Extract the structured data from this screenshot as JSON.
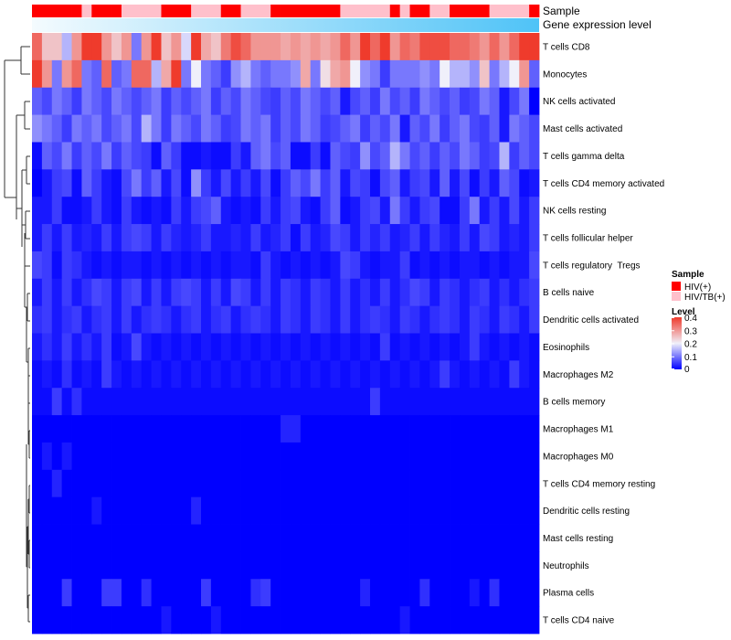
{
  "chart_data": {
    "type": "heatmap",
    "title": "",
    "annotation_rows": [
      "Sample",
      "Gene expression level"
    ],
    "row_labels": [
      "T cells CD8",
      "Monocytes",
      "NK cells activated",
      "Mast cells activated",
      "T cells gamma delta",
      "T cells CD4 memory activated",
      "NK cells resting",
      "T cells follicular helper",
      "T cells regulatory  Tregs",
      "B cells naive",
      "Dendritic cells activated",
      "Eosinophils",
      "Macrophages M2",
      "B cells memory",
      "Macrophages M1",
      "Macrophages M0",
      "T cells CD4 memory resting",
      "Dendritic cells resting",
      "Mast cells resting",
      "Neutrophils",
      "Plasma cells",
      "T cells CD4 naive"
    ],
    "sample_groups": [
      1,
      1,
      1,
      1,
      1,
      2,
      1,
      1,
      1,
      2,
      2,
      2,
      2,
      1,
      1,
      1,
      2,
      2,
      2,
      1,
      1,
      2,
      2,
      2,
      1,
      1,
      1,
      1,
      1,
      1,
      1,
      2,
      2,
      2,
      2,
      2,
      1,
      2,
      1,
      1,
      2,
      2,
      1,
      1,
      1,
      1,
      2,
      2,
      2,
      2,
      1
    ],
    "values": [
      [
        0.35,
        0.25,
        0.25,
        0.15,
        0.3,
        0.4,
        0.4,
        0.3,
        0.25,
        0.3,
        0.1,
        0.3,
        0.4,
        0.25,
        0.3,
        0.18,
        0.4,
        0.28,
        0.25,
        0.33,
        0.38,
        0.35,
        0.3,
        0.3,
        0.3,
        0.28,
        0.3,
        0.28,
        0.3,
        0.28,
        0.3,
        0.35,
        0.3,
        0.4,
        0.35,
        0.4,
        0.3,
        0.35,
        0.33,
        0.38,
        0.38,
        0.38,
        0.35,
        0.35,
        0.33,
        0.3,
        0.35,
        0.3,
        0.35,
        0.4,
        0.4
      ],
      [
        0.4,
        0.3,
        0.1,
        0.3,
        0.35,
        0.1,
        0.08,
        0.35,
        0.08,
        0.1,
        0.35,
        0.35,
        0.15,
        0.28,
        0.4,
        0.1,
        0.2,
        0.1,
        0.08,
        0.05,
        0.12,
        0.15,
        0.1,
        0.08,
        0.1,
        0.1,
        0.12,
        0.28,
        0.1,
        0.22,
        0.28,
        0.3,
        0.2,
        0.12,
        0.1,
        0.05,
        0.1,
        0.1,
        0.1,
        0.12,
        0.1,
        0.2,
        0.15,
        0.15,
        0.12,
        0.25,
        0.1,
        0.15,
        0.2,
        0.3,
        0.08
      ],
      [
        0.08,
        0.06,
        0.1,
        0.08,
        0.05,
        0.1,
        0.08,
        0.06,
        0.1,
        0.08,
        0.06,
        0.08,
        0.1,
        0.05,
        0.08,
        0.06,
        0.08,
        0.1,
        0.05,
        0.08,
        0.06,
        0.1,
        0.08,
        0.06,
        0.05,
        0.08,
        0.06,
        0.1,
        0.08,
        0.06,
        0.08,
        0.02,
        0.06,
        0.08,
        0.05,
        0.1,
        0.06,
        0.08,
        0.05,
        0.1,
        0.08,
        0.06,
        0.08,
        0.05,
        0.06,
        0.1,
        0.08,
        0.02,
        0.06,
        0.1,
        0.0
      ],
      [
        0.12,
        0.1,
        0.08,
        0.05,
        0.1,
        0.08,
        0.1,
        0.06,
        0.08,
        0.1,
        0.06,
        0.15,
        0.1,
        0.05,
        0.1,
        0.08,
        0.06,
        0.1,
        0.08,
        0.05,
        0.06,
        0.1,
        0.08,
        0.1,
        0.05,
        0.08,
        0.06,
        0.1,
        0.08,
        0.05,
        0.06,
        0.08,
        0.1,
        0.05,
        0.08,
        0.06,
        0.1,
        0.02,
        0.08,
        0.06,
        0.1,
        0.05,
        0.08,
        0.1,
        0.06,
        0.05,
        0.08,
        0.02,
        0.1,
        0.08,
        0.06
      ],
      [
        0.01,
        0.08,
        0.06,
        0.1,
        0.05,
        0.08,
        0.06,
        0.1,
        0.05,
        0.08,
        0.06,
        0.05,
        0.01,
        0.08,
        0.05,
        0.01,
        0.01,
        0.02,
        0.01,
        0.01,
        0.05,
        0.02,
        0.08,
        0.1,
        0.06,
        0.08,
        0.01,
        0.01,
        0.05,
        0.01,
        0.08,
        0.06,
        0.05,
        0.12,
        0.06,
        0.08,
        0.15,
        0.1,
        0.06,
        0.08,
        0.05,
        0.08,
        0.06,
        0.1,
        0.08,
        0.05,
        0.06,
        0.15,
        0.05,
        0.08,
        0.06
      ],
      [
        0.0,
        0.02,
        0.05,
        0.06,
        0.01,
        0.08,
        0.05,
        0.02,
        0.01,
        0.06,
        0.1,
        0.05,
        0.08,
        0.02,
        0.06,
        0.01,
        0.12,
        0.05,
        0.02,
        0.06,
        0.02,
        0.05,
        0.02,
        0.06,
        0.01,
        0.05,
        0.08,
        0.06,
        0.1,
        0.05,
        0.08,
        0.02,
        0.06,
        0.05,
        0.01,
        0.06,
        0.08,
        0.02,
        0.05,
        0.06,
        0.02,
        0.08,
        0.02,
        0.06,
        0.01,
        0.05,
        0.02,
        0.08,
        0.06,
        0.01,
        0.02
      ],
      [
        0.02,
        0.02,
        0.05,
        0.01,
        0.01,
        0.02,
        0.05,
        0.02,
        0.01,
        0.05,
        0.02,
        0.01,
        0.02,
        0.01,
        0.05,
        0.02,
        0.05,
        0.06,
        0.08,
        0.02,
        0.01,
        0.02,
        0.01,
        0.05,
        0.02,
        0.05,
        0.06,
        0.02,
        0.01,
        0.05,
        0.08,
        0.01,
        0.02,
        0.05,
        0.06,
        0.02,
        0.1,
        0.05,
        0.02,
        0.05,
        0.06,
        0.01,
        0.01,
        0.05,
        0.1,
        0.02,
        0.05,
        0.02,
        0.06,
        0.02,
        0.05
      ],
      [
        0.02,
        0.05,
        0.02,
        0.05,
        0.02,
        0.03,
        0.02,
        0.05,
        0.02,
        0.05,
        0.06,
        0.05,
        0.02,
        0.05,
        0.03,
        0.02,
        0.03,
        0.05,
        0.02,
        0.02,
        0.03,
        0.02,
        0.05,
        0.02,
        0.03,
        0.05,
        0.01,
        0.05,
        0.02,
        0.03,
        0.06,
        0.05,
        0.02,
        0.05,
        0.03,
        0.05,
        0.02,
        0.03,
        0.05,
        0.02,
        0.05,
        0.03,
        0.02,
        0.05,
        0.02,
        0.06,
        0.05,
        0.02,
        0.03,
        0.02,
        0.05
      ],
      [
        0.06,
        0.05,
        0.01,
        0.05,
        0.04,
        0.02,
        0.01,
        0.02,
        0.01,
        0.02,
        0.02,
        0.01,
        0.02,
        0.01,
        0.02,
        0.01,
        0.02,
        0.01,
        0.02,
        0.01,
        0.02,
        0.02,
        0.01,
        0.05,
        0.02,
        0.01,
        0.02,
        0.01,
        0.02,
        0.01,
        0.02,
        0.06,
        0.05,
        0.02,
        0.01,
        0.02,
        0.02,
        0.05,
        0.01,
        0.02,
        0.01,
        0.02,
        0.01,
        0.02,
        0.02,
        0.01,
        0.02,
        0.01,
        0.02,
        0.02,
        0.06
      ],
      [
        0.02,
        0.05,
        0.02,
        0.05,
        0.02,
        0.04,
        0.06,
        0.05,
        0.02,
        0.05,
        0.06,
        0.02,
        0.05,
        0.02,
        0.05,
        0.06,
        0.05,
        0.02,
        0.05,
        0.02,
        0.06,
        0.05,
        0.02,
        0.05,
        0.02,
        0.05,
        0.04,
        0.02,
        0.05,
        0.04,
        0.02,
        0.05,
        0.02,
        0.04,
        0.02,
        0.05,
        0.02,
        0.04,
        0.06,
        0.05,
        0.02,
        0.05,
        0.04,
        0.02,
        0.04,
        0.05,
        0.02,
        0.04,
        0.02,
        0.04,
        0.05
      ],
      [
        0.04,
        0.05,
        0.02,
        0.04,
        0.05,
        0.02,
        0.04,
        0.05,
        0.02,
        0.05,
        0.02,
        0.04,
        0.05,
        0.04,
        0.02,
        0.04,
        0.05,
        0.02,
        0.04,
        0.05,
        0.02,
        0.04,
        0.05,
        0.04,
        0.02,
        0.05,
        0.04,
        0.02,
        0.05,
        0.04,
        0.02,
        0.05,
        0.02,
        0.04,
        0.05,
        0.04,
        0.02,
        0.05,
        0.04,
        0.02,
        0.04,
        0.05,
        0.04,
        0.02,
        0.05,
        0.04,
        0.02,
        0.05,
        0.04,
        0.02,
        0.05
      ],
      [
        0.02,
        0.04,
        0.02,
        0.05,
        0.02,
        0.04,
        0.02,
        0.05,
        0.01,
        0.02,
        0.06,
        0.02,
        0.01,
        0.02,
        0.01,
        0.02,
        0.01,
        0.02,
        0.01,
        0.02,
        0.01,
        0.02,
        0.01,
        0.02,
        0.01,
        0.02,
        0.01,
        0.02,
        0.01,
        0.02,
        0.01,
        0.02,
        0.01,
        0.02,
        0.01,
        0.05,
        0.01,
        0.02,
        0.01,
        0.02,
        0.01,
        0.02,
        0.01,
        0.02,
        0.05,
        0.02,
        0.01,
        0.02,
        0.01,
        0.02,
        0.01
      ],
      [
        0.01,
        0.02,
        0.01,
        0.04,
        0.01,
        0.02,
        0.01,
        0.05,
        0.02,
        0.01,
        0.02,
        0.01,
        0.02,
        0.01,
        0.02,
        0.01,
        0.02,
        0.01,
        0.02,
        0.01,
        0.02,
        0.01,
        0.02,
        0.01,
        0.02,
        0.01,
        0.02,
        0.01,
        0.02,
        0.01,
        0.02,
        0.01,
        0.02,
        0.01,
        0.02,
        0.01,
        0.02,
        0.01,
        0.02,
        0.01,
        0.02,
        0.05,
        0.02,
        0.01,
        0.02,
        0.01,
        0.02,
        0.01,
        0.05,
        0.02,
        0.01
      ],
      [
        0.01,
        0.01,
        0.05,
        0.01,
        0.04,
        0.01,
        0.01,
        0.01,
        0.01,
        0.01,
        0.01,
        0.01,
        0.01,
        0.01,
        0.01,
        0.01,
        0.01,
        0.01,
        0.01,
        0.01,
        0.01,
        0.01,
        0.01,
        0.01,
        0.01,
        0.01,
        0.01,
        0.01,
        0.01,
        0.01,
        0.01,
        0.01,
        0.01,
        0.01,
        0.05,
        0.01,
        0.01,
        0.01,
        0.01,
        0.01,
        0.01,
        0.01,
        0.01,
        0.01,
        0.01,
        0.01,
        0.01,
        0.01,
        0.01,
        0.01,
        0.01
      ],
      [
        0.0,
        0.0,
        0.0,
        0.0,
        0.0,
        0.0,
        0.0,
        0.0,
        0.0,
        0.0,
        0.0,
        0.0,
        0.0,
        0.0,
        0.0,
        0.0,
        0.0,
        0.0,
        0.0,
        0.0,
        0.0,
        0.0,
        0.0,
        0.0,
        0.0,
        0.03,
        0.03,
        0.0,
        0.0,
        0.0,
        0.0,
        0.0,
        0.0,
        0.0,
        0.0,
        0.0,
        0.0,
        0.0,
        0.0,
        0.0,
        0.0,
        0.0,
        0.0,
        0.0,
        0.0,
        0.0,
        0.0,
        0.0,
        0.0,
        0.0,
        0.0
      ],
      [
        0.0,
        0.02,
        0.0,
        0.02,
        0.0,
        0.0,
        0.0,
        0.0,
        0.0,
        0.0,
        0.0,
        0.0,
        0.0,
        0.0,
        0.0,
        0.0,
        0.0,
        0.0,
        0.0,
        0.0,
        0.0,
        0.0,
        0.0,
        0.0,
        0.0,
        0.0,
        0.0,
        0.0,
        0.0,
        0.0,
        0.0,
        0.0,
        0.0,
        0.0,
        0.0,
        0.0,
        0.0,
        0.0,
        0.0,
        0.0,
        0.0,
        0.0,
        0.0,
        0.0,
        0.0,
        0.0,
        0.0,
        0.0,
        0.0,
        0.0,
        0.0
      ],
      [
        0.0,
        0.0,
        0.03,
        0.0,
        0.0,
        0.0,
        0.0,
        0.0,
        0.0,
        0.0,
        0.0,
        0.0,
        0.0,
        0.0,
        0.0,
        0.0,
        0.0,
        0.0,
        0.0,
        0.0,
        0.0,
        0.0,
        0.0,
        0.0,
        0.0,
        0.0,
        0.0,
        0.0,
        0.0,
        0.0,
        0.0,
        0.0,
        0.0,
        0.0,
        0.0,
        0.0,
        0.0,
        0.0,
        0.0,
        0.0,
        0.0,
        0.0,
        0.0,
        0.0,
        0.0,
        0.0,
        0.0,
        0.0,
        0.0,
        0.0,
        0.0
      ],
      [
        0.0,
        0.0,
        0.0,
        0.0,
        0.0,
        0.0,
        0.02,
        0.0,
        0.0,
        0.0,
        0.0,
        0.0,
        0.0,
        0.0,
        0.0,
        0.0,
        0.03,
        0.0,
        0.0,
        0.0,
        0.0,
        0.0,
        0.0,
        0.0,
        0.0,
        0.0,
        0.0,
        0.0,
        0.0,
        0.0,
        0.0,
        0.0,
        0.0,
        0.0,
        0.0,
        0.0,
        0.0,
        0.0,
        0.0,
        0.0,
        0.0,
        0.0,
        0.0,
        0.0,
        0.0,
        0.0,
        0.0,
        0.0,
        0.0,
        0.0,
        0.0
      ],
      [
        0.0,
        0.0,
        0.0,
        0.0,
        0.0,
        0.0,
        0.0,
        0.0,
        0.0,
        0.0,
        0.0,
        0.0,
        0.0,
        0.0,
        0.0,
        0.0,
        0.0,
        0.0,
        0.0,
        0.0,
        0.0,
        0.0,
        0.0,
        0.0,
        0.0,
        0.0,
        0.0,
        0.0,
        0.0,
        0.0,
        0.0,
        0.0,
        0.0,
        0.0,
        0.0,
        0.0,
        0.0,
        0.0,
        0.0,
        0.0,
        0.0,
        0.0,
        0.0,
        0.0,
        0.0,
        0.0,
        0.0,
        0.0,
        0.0,
        0.0,
        0.0
      ],
      [
        0.0,
        0.0,
        0.0,
        0.0,
        0.0,
        0.0,
        0.0,
        0.0,
        0.0,
        0.0,
        0.0,
        0.0,
        0.0,
        0.0,
        0.0,
        0.0,
        0.0,
        0.0,
        0.0,
        0.0,
        0.0,
        0.0,
        0.0,
        0.0,
        0.0,
        0.0,
        0.0,
        0.0,
        0.0,
        0.0,
        0.0,
        0.0,
        0.0,
        0.0,
        0.0,
        0.0,
        0.0,
        0.0,
        0.0,
        0.0,
        0.0,
        0.0,
        0.0,
        0.0,
        0.0,
        0.0,
        0.0,
        0.0,
        0.0,
        0.0,
        0.0
      ],
      [
        0.0,
        0.0,
        0.0,
        0.05,
        0.0,
        0.0,
        0.0,
        0.05,
        0.05,
        0.0,
        0.0,
        0.04,
        0.0,
        0.0,
        0.0,
        0.0,
        0.0,
        0.05,
        0.0,
        0.0,
        0.0,
        0.0,
        0.04,
        0.05,
        0.0,
        0.0,
        0.0,
        0.0,
        0.0,
        0.0,
        0.0,
        0.0,
        0.0,
        0.03,
        0.0,
        0.0,
        0.0,
        0.0,
        0.0,
        0.04,
        0.0,
        0.0,
        0.0,
        0.0,
        0.02,
        0.0,
        0.04,
        0.0,
        0.0,
        0.0,
        0.0
      ],
      [
        0.0,
        0.0,
        0.0,
        0.0,
        0.0,
        0.0,
        0.0,
        0.0,
        0.0,
        0.0,
        0.0,
        0.0,
        0.0,
        0.02,
        0.0,
        0.0,
        0.0,
        0.0,
        0.02,
        0.0,
        0.0,
        0.0,
        0.0,
        0.0,
        0.0,
        0.0,
        0.0,
        0.0,
        0.0,
        0.0,
        0.0,
        0.0,
        0.0,
        0.0,
        0.0,
        0.0,
        0.0,
        0.02,
        0.0,
        0.0,
        0.0,
        0.0,
        0.0,
        0.0,
        0.0,
        0.0,
        0.0,
        0.0,
        0.0,
        0.0,
        0.0
      ]
    ],
    "color_scale": {
      "low": "#0000ff",
      "mid": "#f0f0fa",
      "high": "#ef3b2c",
      "min": 0,
      "mid_value": 0.2,
      "max": 0.4
    },
    "legend": {
      "sample_title": "Sample",
      "groups": [
        {
          "label": "HIV(+)",
          "color": "#ff0000"
        },
        {
          "label": "HIV/TB(+)",
          "color": "#ffc0cb"
        }
      ],
      "level_title": "Level",
      "level_ticks": [
        {
          "label": "0.4",
          "value": 0.4
        },
        {
          "label": "0.3",
          "value": 0.3
        },
        {
          "label": "0.2",
          "value": 0.2
        },
        {
          "label": "0.1",
          "value": 0.1
        },
        {
          "label": "0",
          "value": 0.0
        }
      ]
    },
    "gradient_colors": [
      "#f4fbfe",
      "#4fc3f7"
    ]
  }
}
